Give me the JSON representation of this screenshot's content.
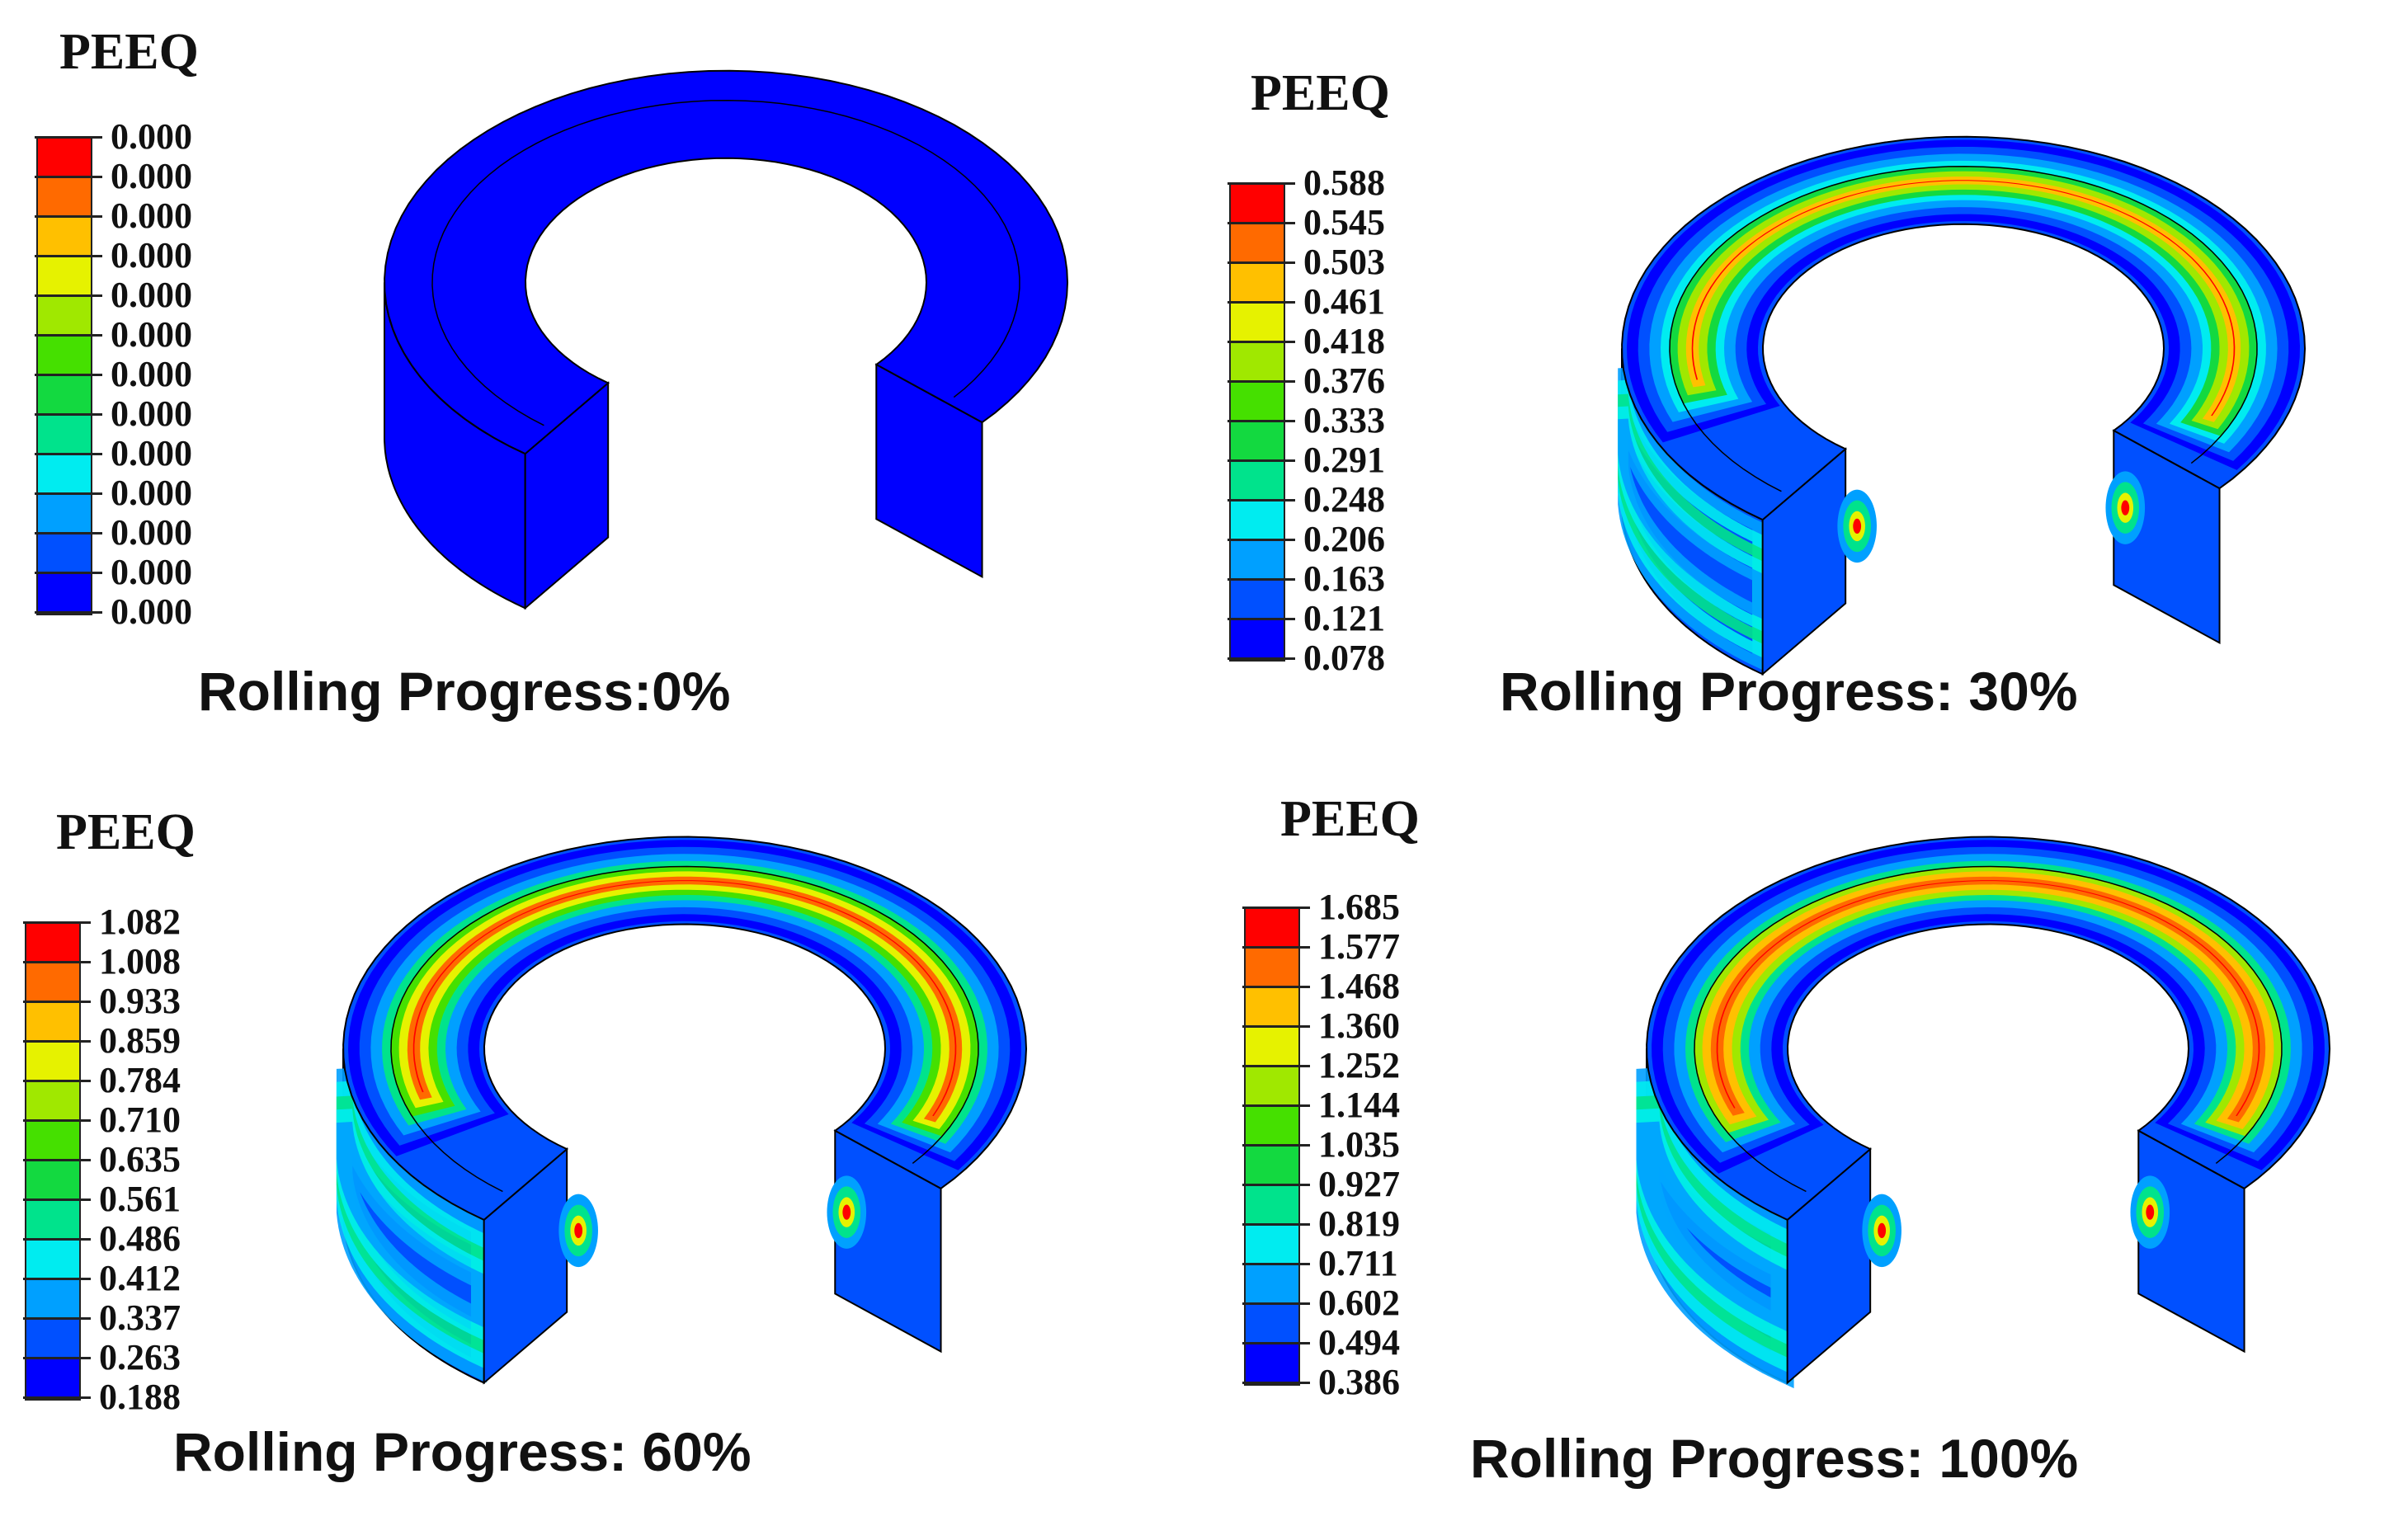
{
  "colors": {
    "contour": [
      "#0000ff",
      "#0050ff",
      "#00a0ff",
      "#00ecf0",
      "#00e38c",
      "#13d940",
      "#45e000",
      "#a0e800",
      "#e6f200",
      "#ffc000",
      "#ff6a00",
      "#ff0000"
    ]
  },
  "panels": [
    {
      "legend_title": "PEEQ",
      "ticks": [
        "0.000",
        "0.000",
        "0.000",
        "0.000",
        "0.000",
        "0.000",
        "0.000",
        "0.000",
        "0.000",
        "0.000",
        "0.000",
        "0.000",
        "0.000"
      ],
      "caption": "Rolling Progress:0%",
      "progress": 0
    },
    {
      "legend_title": "PEEQ",
      "ticks": [
        "0.588",
        "0.545",
        "0.503",
        "0.461",
        "0.418",
        "0.376",
        "0.333",
        "0.291",
        "0.248",
        "0.206",
        "0.163",
        "0.121",
        "0.078"
      ],
      "caption": "Rolling Progress: 30%",
      "progress": 0.3
    },
    {
      "legend_title": "PEEQ",
      "ticks": [
        "1.082",
        "1.008",
        "0.933",
        "0.859",
        "0.784",
        "0.710",
        "0.635",
        "0.561",
        "0.486",
        "0.412",
        "0.337",
        "0.263",
        "0.188"
      ],
      "caption": "Rolling Progress: 60%",
      "progress": 0.6
    },
    {
      "legend_title": "PEEQ",
      "ticks": [
        "1.685",
        "1.577",
        "1.468",
        "1.360",
        "1.252",
        "1.144",
        "1.035",
        "0.927",
        "0.819",
        "0.711",
        "0.602",
        "0.494",
        "0.386"
      ],
      "caption": "Rolling Progress: 100%",
      "progress": 1.0
    }
  ]
}
